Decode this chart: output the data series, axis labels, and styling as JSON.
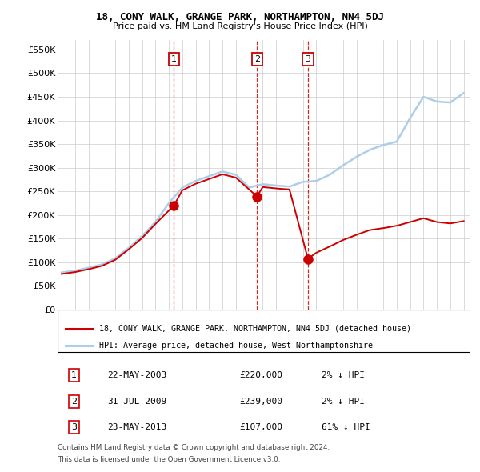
{
  "title": "18, CONY WALK, GRANGE PARK, NORTHAMPTON, NN4 5DJ",
  "subtitle": "Price paid vs. HM Land Registry's House Price Index (HPI)",
  "ylabel_ticks": [
    "£0",
    "£50K",
    "£100K",
    "£150K",
    "£200K",
    "£250K",
    "£300K",
    "£350K",
    "£400K",
    "£450K",
    "£500K",
    "£550K"
  ],
  "ytick_vals": [
    0,
    50000,
    100000,
    150000,
    200000,
    250000,
    300000,
    350000,
    400000,
    450000,
    500000,
    550000
  ],
  "ylim": [
    0,
    570000
  ],
  "hpi_color": "#aecde8",
  "price_color": "#cc0000",
  "transactions": [
    {
      "num": 1,
      "date_x": 2003.38,
      "price": 220000,
      "label": "22-MAY-2003",
      "amount": "£220,000",
      "pct": "2%",
      "dir": "↓"
    },
    {
      "num": 2,
      "date_x": 2009.58,
      "price": 239000,
      "label": "31-JUL-2009",
      "amount": "£239,000",
      "pct": "2%",
      "dir": "↓"
    },
    {
      "num": 3,
      "date_x": 2013.38,
      "price": 107000,
      "label": "23-MAY-2013",
      "amount": "£107,000",
      "pct": "61%",
      "dir": "↓"
    }
  ],
  "legend_house_label": "18, CONY WALK, GRANGE PARK, NORTHAMPTON, NN4 5DJ (detached house)",
  "legend_hpi_label": "HPI: Average price, detached house, West Northamptonshire",
  "footer1": "Contains HM Land Registry data © Crown copyright and database right 2024.",
  "footer2": "This data is licensed under the Open Government Licence v3.0.",
  "xmin": 1994.7,
  "xmax": 2025.5,
  "hpi_data": {
    "years": [
      1995,
      1996,
      1997,
      1998,
      1999,
      2000,
      2001,
      2002,
      2003,
      2004,
      2005,
      2006,
      2007,
      2008,
      2009,
      2010,
      2011,
      2012,
      2013,
      2014,
      2015,
      2016,
      2017,
      2018,
      2019,
      2020,
      2021,
      2022,
      2023,
      2024,
      2025
    ],
    "values": [
      78000,
      82000,
      88000,
      95000,
      108000,
      130000,
      155000,
      185000,
      225000,
      258000,
      272000,
      282000,
      292000,
      285000,
      258000,
      265000,
      262000,
      260000,
      270000,
      272000,
      285000,
      305000,
      323000,
      338000,
      348000,
      355000,
      405000,
      450000,
      440000,
      438000,
      458000
    ]
  },
  "price_data": {
    "years": [
      1995,
      1996,
      1997,
      1998,
      1999,
      2000,
      2001,
      2002,
      2003.38,
      2004,
      2005,
      2006,
      2007,
      2008,
      2009.58,
      2010,
      2011,
      2012,
      2013.38,
      2014,
      2015,
      2016,
      2017,
      2018,
      2019,
      2020,
      2021,
      2022,
      2023,
      2024,
      2025
    ],
    "values": [
      75000,
      79000,
      85000,
      92000,
      105000,
      127000,
      151000,
      181000,
      220000,
      252000,
      266000,
      276000,
      286000,
      279000,
      239000,
      259000,
      256000,
      254000,
      107000,
      120000,
      133000,
      147000,
      158000,
      168000,
      172000,
      177000,
      185000,
      193000,
      185000,
      182000,
      187000
    ]
  }
}
